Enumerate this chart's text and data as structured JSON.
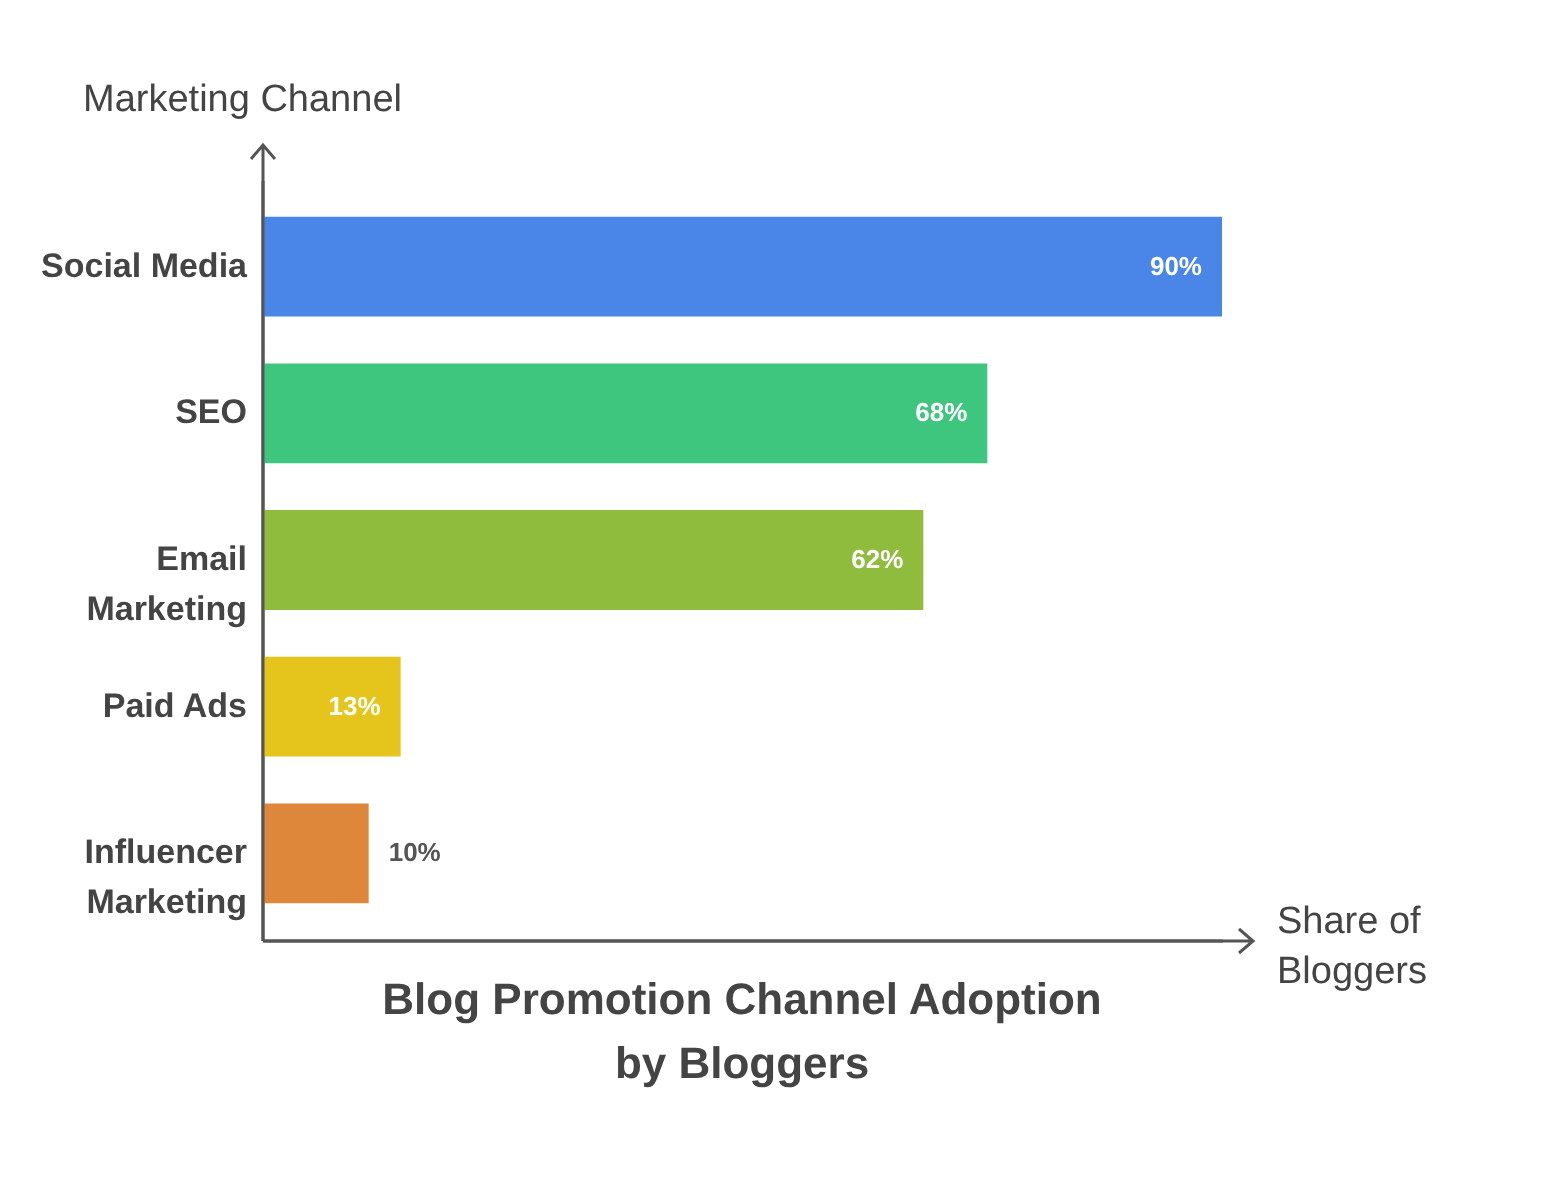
{
  "chart_data": {
    "type": "bar",
    "orientation": "horizontal",
    "title": "Blog Promotion Channel Adoption by Bloggers",
    "xlabel": "Share of Bloggers",
    "ylabel": "Marketing Channel",
    "categories": [
      "Social Media",
      "SEO",
      "Email Marketing",
      "Paid Ads",
      "Influencer Marketing"
    ],
    "values": [
      90,
      68,
      62,
      13,
      10
    ],
    "colors": [
      "#4a86e8",
      "#3ec67f",
      "#8fbc3c",
      "#e5c51c",
      "#de863a"
    ],
    "value_labels": [
      "90%",
      "68%",
      "62%",
      "13%",
      "10%"
    ],
    "tick_labels": "y",
    "grid": false
  }
}
